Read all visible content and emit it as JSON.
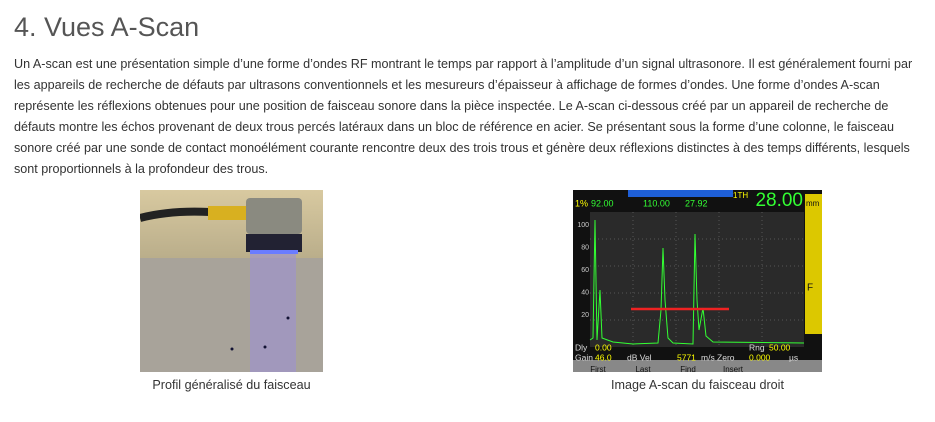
{
  "heading": "4. Vues A-Scan",
  "paragraph": "Un A-scan est une présentation simple d’une forme d’ondes RF montrant le temps par rapport à l’amplitude d’un signal ultrasonore. Il est généralement fourni par les appareils de recherche de défauts par ultrasons conventionnels et les mesureurs d’épaisseur à affichage de formes d’ondes. Une forme d’ondes A-scan représente les réflexions obtenues pour une position de faisceau sonore dans la pièce inspectée. Le A-scan ci-dessous créé par un appareil de recherche de défauts montre les échos provenant de deux trous percés latéraux dans un bloc de référence en acier. Se présentant sous la forme d’une colonne, le faisceau sonore créé par une sonde de contact monoélément courante rencontre deux des trois trous et génère deux réflexions distinctes à des temps différents, lesquels sont proportionnels à la profondeur des trous.",
  "figures": [
    {
      "caption": "Profil généralisé du faisceau"
    },
    {
      "caption": "Image A-scan du faisceau droit",
      "screen": {
        "status": [
          "1%",
          "92.00",
          "110.00",
          "27.92"
        ],
        "gate": "1TH",
        "reading": "28.00",
        "axis_labels": [
          "100",
          "80",
          "60",
          "40",
          "20"
        ],
        "unit": "mm",
        "flag": "F",
        "info": [
          "Dly",
          "0.00",
          "Rng",
          "50.00",
          "Gain",
          "46.0",
          "dB Vel",
          "5771",
          "m/s Zero",
          "0.000",
          "µs"
        ],
        "buttons": [
          "First",
          "Last",
          "Find",
          "Insert"
        ]
      }
    }
  ]
}
